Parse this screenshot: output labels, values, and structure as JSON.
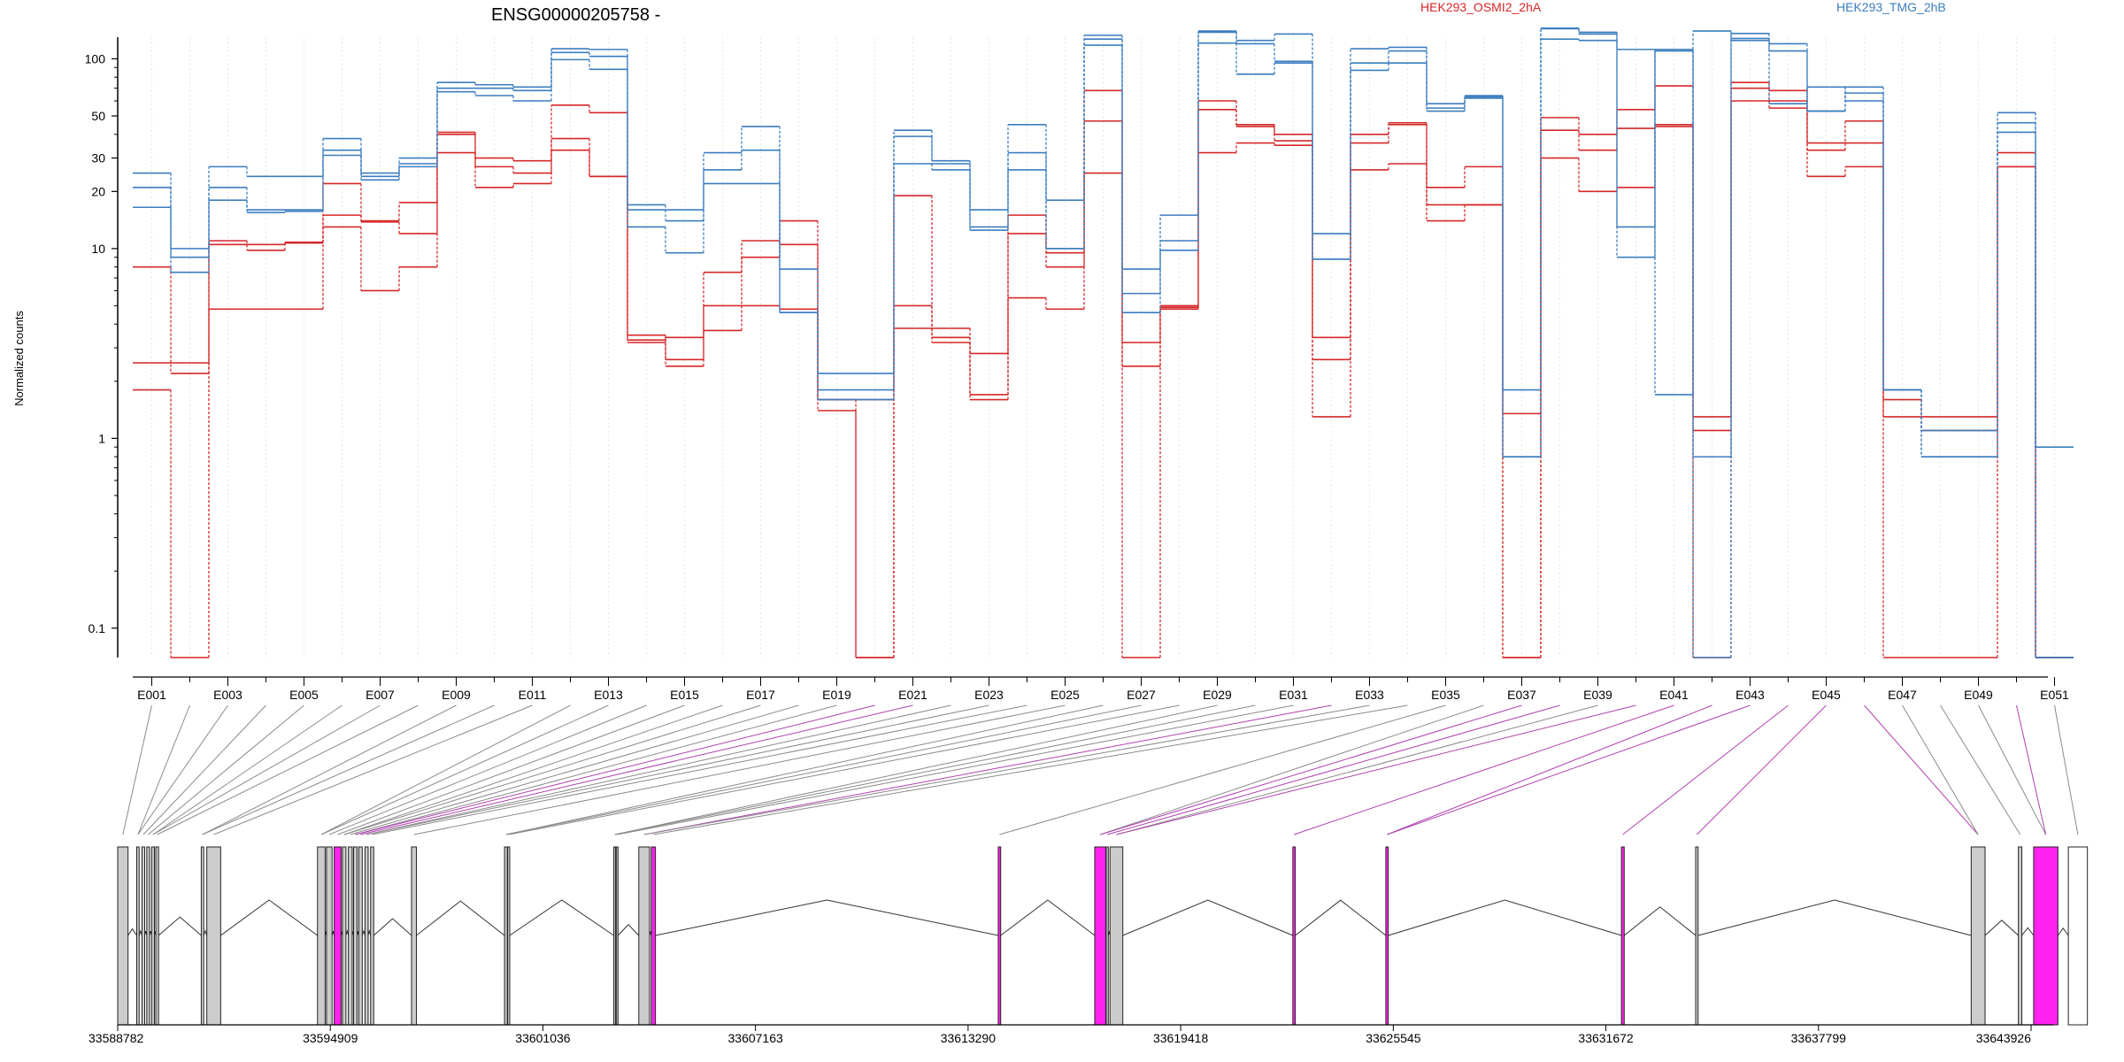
{
  "chart_data": {
    "type": "line",
    "title": "ENSG00000205758 -",
    "ylabel": "Normalized counts",
    "yscale": "log",
    "ylim": [
      0.07,
      130
    ],
    "y_ticks": [
      "0.1",
      "1",
      "10",
      "20",
      "30",
      "50",
      "100"
    ],
    "y_tick_values": [
      0.1,
      1,
      10,
      20,
      30,
      50,
      100
    ],
    "grid": "vertical dotted",
    "legend": [
      {
        "name": "HEK293_OSMI2_2hA",
        "color": "#d62728",
        "placement": "top"
      },
      {
        "name": "HEK293_TMG_2hB",
        "color": "#3b7dbf",
        "placement": "top-right"
      }
    ],
    "x_ticks": [
      "E001",
      "E003",
      "E005",
      "E007",
      "E009",
      "E011",
      "E013",
      "E015",
      "E017",
      "E019",
      "E021",
      "E023",
      "E025",
      "E027",
      "E029",
      "E031",
      "E033",
      "E035",
      "E037",
      "E039",
      "E041",
      "E043",
      "E045",
      "E047",
      "E049",
      "E051"
    ],
    "exon_count": 51,
    "series": [
      {
        "group": "HEK293_OSMI2_2hA",
        "color": "#d62728",
        "values": [
          8,
          2.2,
          11,
          10.5,
          10.8,
          15,
          14,
          17.5,
          40,
          30,
          29,
          38,
          24,
          3.3,
          3.4,
          3.7,
          9,
          14,
          1.4,
          0.07,
          19,
          3.4,
          2.8,
          15,
          9.5,
          47,
          2.4,
          5,
          60,
          44,
          40,
          3.4,
          40,
          46,
          17,
          17,
          0.07,
          42,
          33,
          54,
          72,
          1.3,
          70,
          60,
          36,
          36,
          1.3,
          1.1,
          1.1,
          32,
          0.07
        ]
      },
      {
        "group": "HEK293_OSMI2_2hA",
        "color": "#d62728",
        "values": [
          2.5,
          2.5,
          10.5,
          9.8,
          10.7,
          22,
          13.8,
          12,
          41,
          27,
          25,
          57,
          52,
          3.2,
          2.6,
          7.5,
          11,
          10.5,
          1.6,
          1.6,
          5,
          3.2,
          1.7,
          12,
          8,
          68,
          3.2,
          4.8,
          54,
          45,
          37,
          2.6,
          36,
          45,
          21,
          27,
          1.35,
          49,
          40,
          43,
          44,
          1.1,
          75,
          68,
          33,
          47,
          1.6,
          1.3,
          1.3,
          27,
          0.07
        ]
      },
      {
        "group": "HEK293_OSMI2_2hA",
        "color": "#d62728",
        "values": [
          1.8,
          0.07,
          4.8,
          4.8,
          4.8,
          13,
          6,
          8,
          32,
          21,
          22,
          33,
          24,
          3.5,
          2.4,
          5,
          5,
          4.8,
          1.6,
          0.07,
          3.8,
          3.8,
          1.6,
          5.5,
          4.8,
          25,
          0.07,
          4.9,
          32,
          36,
          35,
          1.3,
          26,
          28,
          14,
          17,
          0.07,
          30,
          20,
          21,
          45,
          0.07,
          60,
          55,
          24,
          27,
          0.07,
          0.07,
          0.07,
          27,
          0.07
        ]
      },
      {
        "group": "HEK293_TMG_2hB",
        "color": "#3b7dbf",
        "values": [
          25,
          10,
          27,
          24,
          24,
          38,
          25,
          28,
          75,
          73,
          71,
          113,
          112,
          17,
          16,
          32,
          44,
          7.8,
          2.2,
          2.2,
          42,
          29,
          16,
          45,
          18,
          133,
          7.8,
          15,
          140,
          125,
          135,
          12,
          113,
          115,
          58,
          64,
          1.8,
          145,
          138,
          112,
          1.7,
          140,
          125,
          58,
          71,
          60,
          1.8,
          1.1,
          1.1,
          52,
          0.9
        ]
      },
      {
        "group": "HEK293_TMG_2hB",
        "color": "#3b7dbf",
        "values": [
          21,
          9,
          21,
          16,
          16,
          33,
          24,
          30,
          70,
          70,
          68,
          108,
          103,
          16,
          14,
          26,
          33,
          4.6,
          1.6,
          1.6,
          39,
          28,
          13,
          32,
          10,
          127,
          4.6,
          11,
          138,
          120,
          97,
          8.8,
          95,
          110,
          55,
          63,
          0.8,
          144,
          135,
          13,
          112,
          0.8,
          136,
          120,
          53,
          71,
          1.8,
          0.8,
          0.8,
          46,
          0.07
        ]
      },
      {
        "group": "HEK293_TMG_2hB",
        "color": "#3b7dbf",
        "values": [
          16.5,
          7.5,
          18,
          15.5,
          15.7,
          31,
          23,
          27,
          67,
          64,
          60,
          99,
          88,
          13,
          9.5,
          22,
          22,
          4.6,
          1.8,
          1.8,
          28,
          26,
          12.5,
          26,
          10,
          118,
          5.8,
          9.8,
          121,
          83,
          95,
          8.8,
          87,
          95,
          53,
          62,
          0.8,
          127,
          125,
          9,
          110,
          0.07,
          128,
          110,
          53,
          66,
          1.8,
          0.8,
          0.8,
          41,
          0.07
        ]
      }
    ],
    "exon_links": [
      {
        "exon": "E001",
        "color": "#8a8a8a"
      },
      {
        "exon": "E002",
        "color": "#8a8a8a"
      },
      {
        "exon": "E003",
        "color": "#8a8a8a"
      },
      {
        "exon": "E004",
        "color": "#8a8a8a"
      },
      {
        "exon": "E005",
        "color": "#8a8a8a"
      },
      {
        "exon": "E006",
        "color": "#8a8a8a"
      },
      {
        "exon": "E007",
        "color": "#8a8a8a"
      },
      {
        "exon": "E008",
        "color": "#8a8a8a"
      },
      {
        "exon": "E009",
        "color": "#8a8a8a"
      },
      {
        "exon": "E010",
        "color": "#8a8a8a"
      },
      {
        "exon": "E011",
        "color": "#8a8a8a"
      },
      {
        "exon": "E012",
        "color": "#8a8a8a"
      },
      {
        "exon": "E013",
        "color": "#8a8a8a"
      },
      {
        "exon": "E014",
        "color": "#8a8a8a"
      },
      {
        "exon": "E015",
        "color": "#8a8a8a"
      },
      {
        "exon": "E016",
        "color": "#8a8a8a"
      },
      {
        "exon": "E017",
        "color": "#8a8a8a"
      },
      {
        "exon": "E018",
        "color": "#8a8a8a"
      },
      {
        "exon": "E019",
        "color": "#8a8a8a"
      },
      {
        "exon": "E020",
        "color": "#b040b0"
      },
      {
        "exon": "E021",
        "color": "#b040b0"
      },
      {
        "exon": "E022",
        "color": "#8a8a8a"
      },
      {
        "exon": "E023",
        "color": "#8a8a8a"
      },
      {
        "exon": "E024",
        "color": "#8a8a8a"
      },
      {
        "exon": "E025",
        "color": "#8a8a8a"
      },
      {
        "exon": "E026",
        "color": "#8a8a8a"
      },
      {
        "exon": "E027",
        "color": "#8a8a8a"
      },
      {
        "exon": "E028",
        "color": "#8a8a8a"
      },
      {
        "exon": "E029",
        "color": "#8a8a8a"
      },
      {
        "exon": "E030",
        "color": "#8a8a8a"
      },
      {
        "exon": "E031",
        "color": "#8a8a8a"
      },
      {
        "exon": "E032",
        "color": "#b040b0"
      },
      {
        "exon": "E033",
        "color": "#8a8a8a"
      },
      {
        "exon": "E034",
        "color": "#8a8a8a"
      },
      {
        "exon": "E035",
        "color": "#8a8a8a"
      },
      {
        "exon": "E036",
        "color": "#8a8a8a"
      },
      {
        "exon": "E037",
        "color": "#b040b0"
      },
      {
        "exon": "E038",
        "color": "#b040b0"
      },
      {
        "exon": "E039",
        "color": "#8a8a8a"
      },
      {
        "exon": "E040",
        "color": "#b040b0"
      },
      {
        "exon": "E041",
        "color": "#b040b0"
      },
      {
        "exon": "E042",
        "color": "#b040b0"
      },
      {
        "exon": "E043",
        "color": "#b040b0"
      },
      {
        "exon": "E044",
        "color": "#b040b0"
      },
      {
        "exon": "E045",
        "color": "#b040b0"
      },
      {
        "exon": "E046",
        "color": "#b040b0"
      },
      {
        "exon": "E047",
        "color": "#8a8a8a"
      },
      {
        "exon": "E048",
        "color": "#8a8a8a"
      },
      {
        "exon": "E049",
        "color": "#8a8a8a"
      },
      {
        "exon": "E050",
        "color": "#b040b0"
      },
      {
        "exon": "E051",
        "color": "#8a8a8a"
      }
    ],
    "gene_model": {
      "genomic_ticks": [
        "33588782",
        "33594909",
        "33601036",
        "33607163",
        "33613290",
        "33619418",
        "33625545",
        "33631672",
        "33637799",
        "33643926"
      ],
      "genomic_tick_values": [
        33588782,
        33594909,
        33601036,
        33607163,
        33613290,
        33619418,
        33625545,
        33631672,
        33637799,
        33643926
      ],
      "range": [
        33588782,
        33643926
      ],
      "exons": [
        {
          "start": 33588782,
          "end": 33589080,
          "fill": "#cccccc"
        },
        {
          "start": 33589330,
          "end": 33589400,
          "fill": "#cccccc"
        },
        {
          "start": 33589480,
          "end": 33589560,
          "fill": "#cccccc"
        },
        {
          "start": 33589620,
          "end": 33589700,
          "fill": "#cccccc"
        },
        {
          "start": 33589760,
          "end": 33589840,
          "fill": "#cccccc"
        },
        {
          "start": 33589880,
          "end": 33589960,
          "fill": "#cccccc"
        },
        {
          "start": 33591190,
          "end": 33591260,
          "fill": "#cccccc"
        },
        {
          "start": 33591350,
          "end": 33591750,
          "fill": "#cccccc"
        },
        {
          "start": 33594540,
          "end": 33594760,
          "fill": "#cccccc"
        },
        {
          "start": 33594800,
          "end": 33594960,
          "fill": "#cccccc"
        },
        {
          "start": 33595020,
          "end": 33595220,
          "fill": "#ff22ee"
        },
        {
          "start": 33595260,
          "end": 33595360,
          "fill": "#cccccc"
        },
        {
          "start": 33595430,
          "end": 33595540,
          "fill": "#cccccc"
        },
        {
          "start": 33595580,
          "end": 33595680,
          "fill": "#cccccc"
        },
        {
          "start": 33595730,
          "end": 33595830,
          "fill": "#cccccc"
        },
        {
          "start": 33595910,
          "end": 33596000,
          "fill": "#cccccc"
        },
        {
          "start": 33596070,
          "end": 33596160,
          "fill": "#cccccc"
        },
        {
          "start": 33597250,
          "end": 33597390,
          "fill": "#cccccc"
        },
        {
          "start": 33599930,
          "end": 33600010,
          "fill": "#cccccc"
        },
        {
          "start": 33600020,
          "end": 33600080,
          "fill": "#cccccc"
        },
        {
          "start": 33603080,
          "end": 33603130,
          "fill": "#cccccc"
        },
        {
          "start": 33603150,
          "end": 33603200,
          "fill": "#cccccc"
        },
        {
          "start": 33603800,
          "end": 33604110,
          "fill": "#cccccc"
        },
        {
          "start": 33604160,
          "end": 33604280,
          "fill": "#ff22ee"
        },
        {
          "start": 33614160,
          "end": 33614230,
          "fill": "#ff22ee"
        },
        {
          "start": 33616940,
          "end": 33617260,
          "fill": "#ff22ee"
        },
        {
          "start": 33617270,
          "end": 33617330,
          "fill": "#cccccc"
        },
        {
          "start": 33617380,
          "end": 33617750,
          "fill": "#cccccc"
        },
        {
          "start": 33622650,
          "end": 33622720,
          "fill": "#ff22ee"
        },
        {
          "start": 33625330,
          "end": 33625400,
          "fill": "#ff22ee"
        },
        {
          "start": 33632120,
          "end": 33632200,
          "fill": "#ff22ee"
        },
        {
          "start": 33634260,
          "end": 33634330,
          "fill": "#cccccc"
        },
        {
          "start": 33642200,
          "end": 33642600,
          "fill": "#cccccc"
        },
        {
          "start": 33643560,
          "end": 33643660,
          "fill": "#cccccc"
        },
        {
          "start": 33644000,
          "end": 33644700,
          "fill": "#ff22ee"
        },
        {
          "start": 33645000,
          "end": 33645550,
          "fill": "#ffffff"
        }
      ]
    }
  }
}
